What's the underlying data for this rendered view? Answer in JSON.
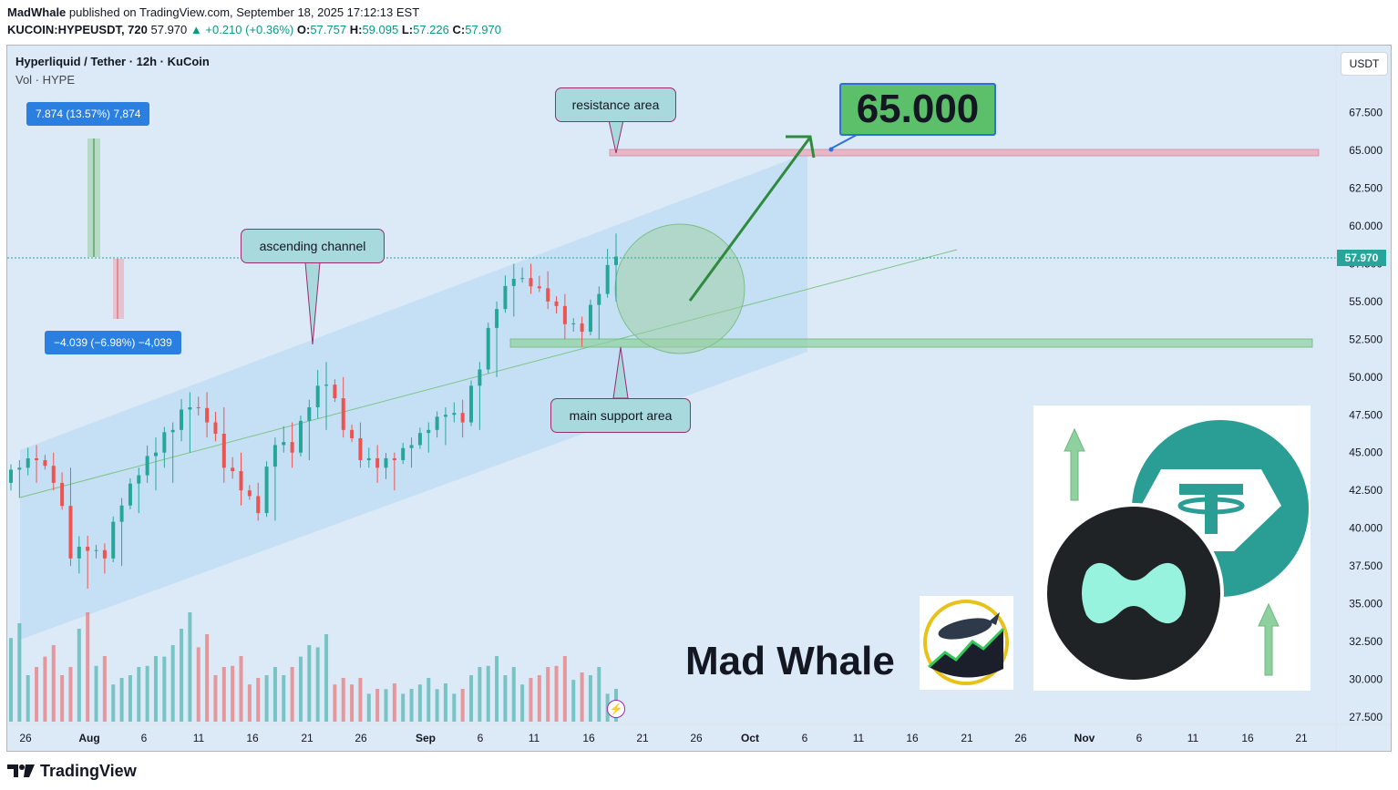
{
  "header": {
    "author": "MadWhale",
    "published": "published on TradingView.com, September 18, 2025 17:12:13 EST",
    "symbol": "KUCOIN:HYPEUSDT, 720",
    "last": "57.970",
    "change": "+0.210 (+0.36%)",
    "o_label": "O:",
    "open": "57.757",
    "h_label": "H:",
    "high": "59.095",
    "l_label": "L:",
    "low": "57.226",
    "c_label": "C:",
    "close": "57.970"
  },
  "legend": {
    "title": "Hyperliquid / Tether · 12h · KuCoin",
    "volume": "Vol · HYPE"
  },
  "currency": "USDT",
  "price_label": "57.970",
  "measure_up": "7.874 (13.57%) 7,874",
  "measure_down": "−4.039 (−6.98%) −4,039",
  "callouts": {
    "resistance": "resistance area",
    "channel": "ascending channel",
    "support": "main support area"
  },
  "target": "65.000",
  "brand": "Mad Whale",
  "footer": "TradingView",
  "colors": {
    "up": "#26a69a",
    "down": "#ef5350",
    "channel": "#a8d4f2",
    "support": "#8fd19e",
    "resistance": "#e9b6c6",
    "arrow": "#2e8b3e",
    "target_bg": "#5cbf6a"
  },
  "chart_data": {
    "type": "candlestick",
    "interval": "12h",
    "y_ticks": [
      27.5,
      30.0,
      32.5,
      35.0,
      37.5,
      40.0,
      42.5,
      45.0,
      47.5,
      50.0,
      52.5,
      55.0,
      57.5,
      60.0,
      62.5,
      65.0,
      67.5
    ],
    "y_tick_labels": [
      "27.500",
      "30.000",
      "32.500",
      "35.000",
      "37.500",
      "40.000",
      "42.500",
      "45.000",
      "47.500",
      "50.000",
      "52.500",
      "55.000",
      "57.500",
      "60.000",
      "62.500",
      "65.000",
      "67.500"
    ],
    "x_ticks": [
      "26",
      "Aug",
      "6",
      "11",
      "16",
      "21",
      "26",
      "Sep",
      "6",
      "11",
      "16",
      "21",
      "26",
      "Oct",
      "6",
      "11",
      "16",
      "21",
      "26",
      "Nov",
      "6",
      "11",
      "16",
      "21"
    ],
    "ohlc_daily_approx": [
      [
        43.0,
        44.5,
        42.0,
        44.0
      ],
      [
        44.0,
        45.5,
        43.0,
        44.5
      ],
      [
        44.5,
        45.0,
        42.5,
        43.0
      ],
      [
        43.0,
        44.0,
        37.5,
        38.0
      ],
      [
        38.0,
        39.5,
        36.0,
        38.5
      ],
      [
        38.5,
        39.0,
        37.0,
        38.0
      ],
      [
        38.0,
        42.0,
        37.5,
        41.5
      ],
      [
        41.5,
        44.0,
        41.0,
        43.5
      ],
      [
        43.5,
        46.0,
        42.5,
        45.0
      ],
      [
        45.0,
        47.0,
        43.0,
        46.5
      ],
      [
        46.5,
        49.0,
        45.0,
        48.0
      ],
      [
        48.0,
        49.0,
        46.0,
        47.0
      ],
      [
        47.0,
        48.0,
        43.0,
        44.0
      ],
      [
        44.0,
        45.0,
        41.5,
        42.5
      ],
      [
        42.5,
        43.0,
        40.5,
        41.0
      ],
      [
        41.0,
        46.0,
        40.5,
        45.5
      ],
      [
        45.5,
        47.0,
        44.0,
        45.0
      ],
      [
        45.0,
        48.5,
        44.5,
        48.0
      ],
      [
        48.0,
        51.0,
        46.5,
        49.5
      ],
      [
        49.5,
        50.0,
        46.0,
        46.5
      ],
      [
        46.5,
        47.0,
        44.0,
        44.5
      ],
      [
        44.5,
        45.5,
        43.0,
        44.0
      ],
      [
        44.0,
        45.0,
        42.5,
        44.5
      ],
      [
        44.5,
        46.0,
        44.0,
        45.5
      ],
      [
        45.5,
        47.0,
        45.0,
        46.5
      ],
      [
        46.5,
        48.0,
        45.5,
        47.5
      ],
      [
        47.5,
        48.5,
        46.0,
        47.0
      ],
      [
        47.0,
        51.0,
        46.5,
        50.5
      ],
      [
        50.5,
        55.0,
        50.0,
        54.5
      ],
      [
        54.5,
        57.5,
        54.0,
        56.5
      ],
      [
        56.5,
        57.5,
        55.5,
        56.0
      ],
      [
        56.0,
        57.0,
        54.5,
        55.0
      ],
      [
        55.0,
        55.5,
        52.5,
        53.5
      ],
      [
        53.5,
        54.0,
        52.0,
        53.0
      ],
      [
        53.0,
        56.0,
        52.5,
        55.5
      ],
      [
        55.5,
        59.5,
        55.0,
        57.97
      ]
    ],
    "volume_relative": [
      0.9,
      0.5,
      0.7,
      0.5,
      1.0,
      0.6,
      0.4,
      0.5,
      0.6,
      0.7,
      1.0,
      0.8,
      0.5,
      0.6,
      0.4,
      0.5,
      0.5,
      0.7,
      0.8,
      0.4,
      0.4,
      0.3,
      0.35,
      0.3,
      0.4,
      0.35,
      0.3,
      0.5,
      0.6,
      0.5,
      0.4,
      0.5,
      0.6,
      0.45,
      0.5,
      0.3
    ],
    "annotations": [
      {
        "text": "resistance area",
        "price": 65.0
      },
      {
        "text": "main support area",
        "price": 52.5
      },
      {
        "text": "ascending channel"
      },
      {
        "text": "65.000",
        "kind": "target"
      }
    ]
  }
}
